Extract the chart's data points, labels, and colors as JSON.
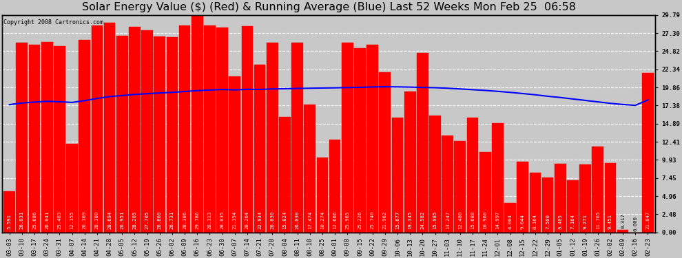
{
  "title": "Solar Energy Value ($) (Red) & Running Average (Blue) Last 52 Weeks Mon Feb 25  06:58",
  "copyright": "Copyright 2008 Cartronics.com",
  "bar_color": "#ff0000",
  "line_color": "#0000ff",
  "background_color": "#c8c8c8",
  "plot_bg_color": "#c8c8c8",
  "yticks": [
    0.0,
    2.48,
    4.96,
    7.45,
    9.93,
    12.41,
    14.89,
    17.38,
    19.86,
    22.34,
    24.82,
    27.3,
    29.79
  ],
  "categories": [
    "03-03",
    "03-10",
    "03-17",
    "03-24",
    "03-31",
    "04-07",
    "04-14",
    "04-21",
    "04-28",
    "05-05",
    "05-12",
    "05-19",
    "05-26",
    "06-02",
    "06-09",
    "06-16",
    "06-23",
    "06-30",
    "07-07",
    "07-14",
    "07-21",
    "07-28",
    "08-04",
    "08-11",
    "08-18",
    "08-25",
    "09-01",
    "09-08",
    "09-15",
    "09-22",
    "09-29",
    "10-06",
    "10-13",
    "10-20",
    "10-27",
    "11-03",
    "11-10",
    "11-17",
    "11-24",
    "12-01",
    "12-08",
    "12-15",
    "12-22",
    "12-29",
    "01-05",
    "01-12",
    "01-19",
    "01-26",
    "02-02",
    "02-09",
    "02-16",
    "02-23"
  ],
  "values": [
    5.591,
    26.031,
    25.686,
    26.041,
    25.483,
    12.155,
    26.369,
    28.38,
    28.694,
    26.951,
    28.205,
    27.705,
    26.86,
    26.731,
    28.386,
    29.786,
    28.313,
    28.035,
    21.354,
    28.264,
    22.934,
    26.03,
    15.824,
    26.03,
    17.474,
    10.274,
    12.666,
    25.965,
    25.226,
    25.74,
    21.962,
    15.677,
    19.345,
    24.582,
    15.985,
    13.247,
    12.48,
    15.688,
    10.96,
    14.997,
    4.004,
    9.644,
    8.164,
    7.5,
    9.405,
    7.164,
    9.271,
    11.765,
    9.451,
    0.317,
    0.0,
    21.847
  ],
  "running_avg": [
    17.5,
    17.72,
    17.85,
    17.95,
    17.9,
    17.8,
    18.05,
    18.35,
    18.6,
    18.75,
    18.9,
    19.0,
    19.1,
    19.18,
    19.3,
    19.42,
    19.5,
    19.58,
    19.52,
    19.6,
    19.58,
    19.65,
    19.68,
    19.72,
    19.75,
    19.78,
    19.8,
    19.84,
    19.87,
    19.92,
    19.95,
    19.93,
    19.9,
    19.85,
    19.82,
    19.75,
    19.65,
    19.55,
    19.45,
    19.32,
    19.18,
    19.02,
    18.85,
    18.65,
    18.48,
    18.28,
    18.08,
    17.88,
    17.68,
    17.52,
    17.4,
    18.15
  ],
  "ylim": [
    0,
    29.79
  ],
  "title_fontsize": 11.5,
  "tick_fontsize": 6.5,
  "value_fontsize": 5.2,
  "grid_color": "#ffffff",
  "border_color": "#000000"
}
